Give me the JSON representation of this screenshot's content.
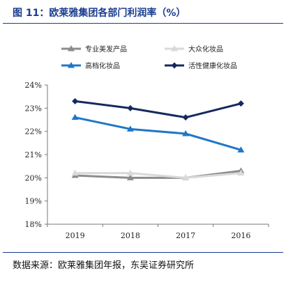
{
  "figure": {
    "title": "图 11：欧莱雅集团各部门利润率（%）",
    "source": "数据来源：欧莱雅集团年报，东吴证券研究所"
  },
  "chart_data": {
    "type": "line",
    "title": "",
    "xlabel": "",
    "ylabel": "",
    "categories": [
      "2019",
      "2018",
      "2017",
      "2016"
    ],
    "ylim": [
      18,
      24
    ],
    "ytick_step": 1,
    "ytick_format": "percent",
    "grid": false,
    "legend_position": "top",
    "series": [
      {
        "name": "专业美发产品",
        "values": [
          20.1,
          20.0,
          20.0,
          20.3
        ],
        "color": "#8c8c8c",
        "marker": "triangle"
      },
      {
        "name": "大众化妆品",
        "values": [
          20.2,
          20.2,
          20.0,
          20.2
        ],
        "color": "#d9d9d9",
        "marker": "triangle"
      },
      {
        "name": "高档化妆品",
        "values": [
          22.6,
          22.1,
          21.9,
          21.2
        ],
        "color": "#1f77c8",
        "marker": "triangle"
      },
      {
        "name": "活性健康化妆品",
        "values": [
          23.3,
          23.0,
          22.6,
          23.2
        ],
        "color": "#132a5e",
        "marker": "diamond"
      }
    ]
  }
}
